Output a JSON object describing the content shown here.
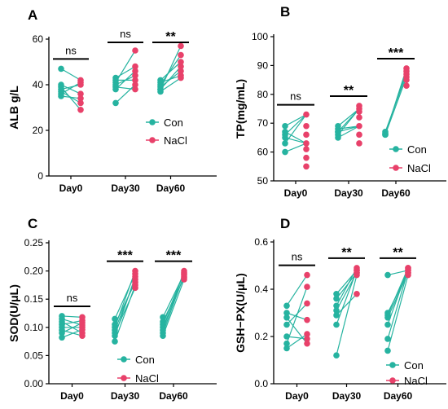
{
  "colors": {
    "con": "#26b3a0",
    "nacl": "#e8416a"
  },
  "legend": {
    "con": "Con",
    "nacl": "NaCl"
  },
  "chart_data": [
    {
      "type": "scatter",
      "panel": "A",
      "ylabel": "ALB g/L",
      "categories": [
        "Day0",
        "Day30",
        "Day60"
      ],
      "ylim": [
        0,
        60
      ],
      "yticks": [
        0,
        20,
        40,
        60
      ],
      "significance": [
        "ns",
        "ns",
        "**"
      ],
      "legend_position": "center-right",
      "series": [
        {
          "name": "Con",
          "values": [
            [
              47,
              40,
              39,
              38,
              37,
              36,
              35
            ],
            [
              43,
              42,
              41,
              40,
              39,
              38,
              32
            ],
            [
              42,
              41,
              40,
              39,
              38,
              38,
              37
            ]
          ]
        },
        {
          "name": "NaCl",
          "values": [
            [
              42,
              41,
              40,
              36,
              34,
              32,
              29
            ],
            [
              55,
              48,
              46,
              44,
              42,
              40,
              38
            ],
            [
              57,
              53,
              50,
              48,
              46,
              44,
              43
            ]
          ]
        }
      ]
    },
    {
      "type": "scatter",
      "panel": "B",
      "ylabel": "TP(mg/mL)",
      "categories": [
        "Day0",
        "Day30",
        "Day60"
      ],
      "ylim": [
        50,
        100
      ],
      "yticks": [
        50,
        60,
        70,
        80,
        90,
        100
      ],
      "significance": [
        "ns",
        "**",
        "***"
      ],
      "legend_position": "bottom-right",
      "series": [
        {
          "name": "Con",
          "values": [
            [
              69,
              67,
              66,
              65,
              63,
              60
            ],
            [
              69,
              68,
              67,
              67,
              66,
              65
            ],
            [
              67,
              66.5,
              66,
              66
            ]
          ]
        },
        {
          "name": "NaCl",
          "values": [
            [
              73,
              69,
              66,
              63,
              61,
              58,
              55
            ],
            [
              76,
              75,
              74,
              72,
              69,
              66,
              63
            ],
            [
              89,
              88,
              87,
              86,
              85,
              83
            ]
          ]
        }
      ]
    },
    {
      "type": "scatter",
      "panel": "C",
      "ylabel": "SOD(U/μL)",
      "categories": [
        "Day0",
        "Day30",
        "Day60"
      ],
      "ylim": [
        0,
        0.25
      ],
      "yticks": [
        0.0,
        0.05,
        0.1,
        0.15,
        0.2,
        0.25
      ],
      "significance": [
        "ns",
        "***",
        "***"
      ],
      "legend_position": "bottom-center",
      "series": [
        {
          "name": "Con",
          "values": [
            [
              0.12,
              0.115,
              0.11,
              0.105,
              0.1,
              0.095,
              0.09,
              0.082
            ],
            [
              0.115,
              0.105,
              0.1,
              0.095,
              0.09,
              0.085,
              0.075
            ],
            [
              0.118,
              0.11,
              0.105,
              0.1,
              0.095,
              0.09,
              0.085
            ]
          ]
        },
        {
          "name": "NaCl",
          "values": [
            [
              0.118,
              0.112,
              0.108,
              0.104,
              0.1,
              0.096,
              0.09,
              0.085
            ],
            [
              0.2,
              0.195,
              0.19,
              0.185,
              0.18,
              0.175,
              0.17
            ],
            [
              0.2,
              0.197,
              0.195,
              0.193,
              0.19,
              0.188,
              0.185
            ]
          ]
        }
      ]
    },
    {
      "type": "scatter",
      "panel": "D",
      "ylabel": "GSH−PX(U/μL)",
      "categories": [
        "Day0",
        "Day30",
        "Day60"
      ],
      "ylim": [
        0,
        0.6
      ],
      "yticks": [
        0.0,
        0.2,
        0.4,
        0.6
      ],
      "significance": [
        "ns",
        "**",
        "**"
      ],
      "legend_position": "bottom-right",
      "series": [
        {
          "name": "Con",
          "values": [
            [
              0.33,
              0.3,
              0.28,
              0.25,
              0.2,
              0.17,
              0.15
            ],
            [
              0.38,
              0.36,
              0.33,
              0.31,
              0.29,
              0.25,
              0.12
            ],
            [
              0.46,
              0.3,
              0.29,
              0.28,
              0.25,
              0.19,
              0.14
            ]
          ]
        },
        {
          "name": "NaCl",
          "values": [
            [
              0.46,
              0.41,
              0.34,
              0.27,
              0.21,
              0.19,
              0.17
            ],
            [
              0.49,
              0.48,
              0.48,
              0.47,
              0.47,
              0.46,
              0.38
            ],
            [
              0.49,
              0.49,
              0.48,
              0.48,
              0.47,
              0.47,
              0.46
            ]
          ]
        }
      ]
    }
  ]
}
